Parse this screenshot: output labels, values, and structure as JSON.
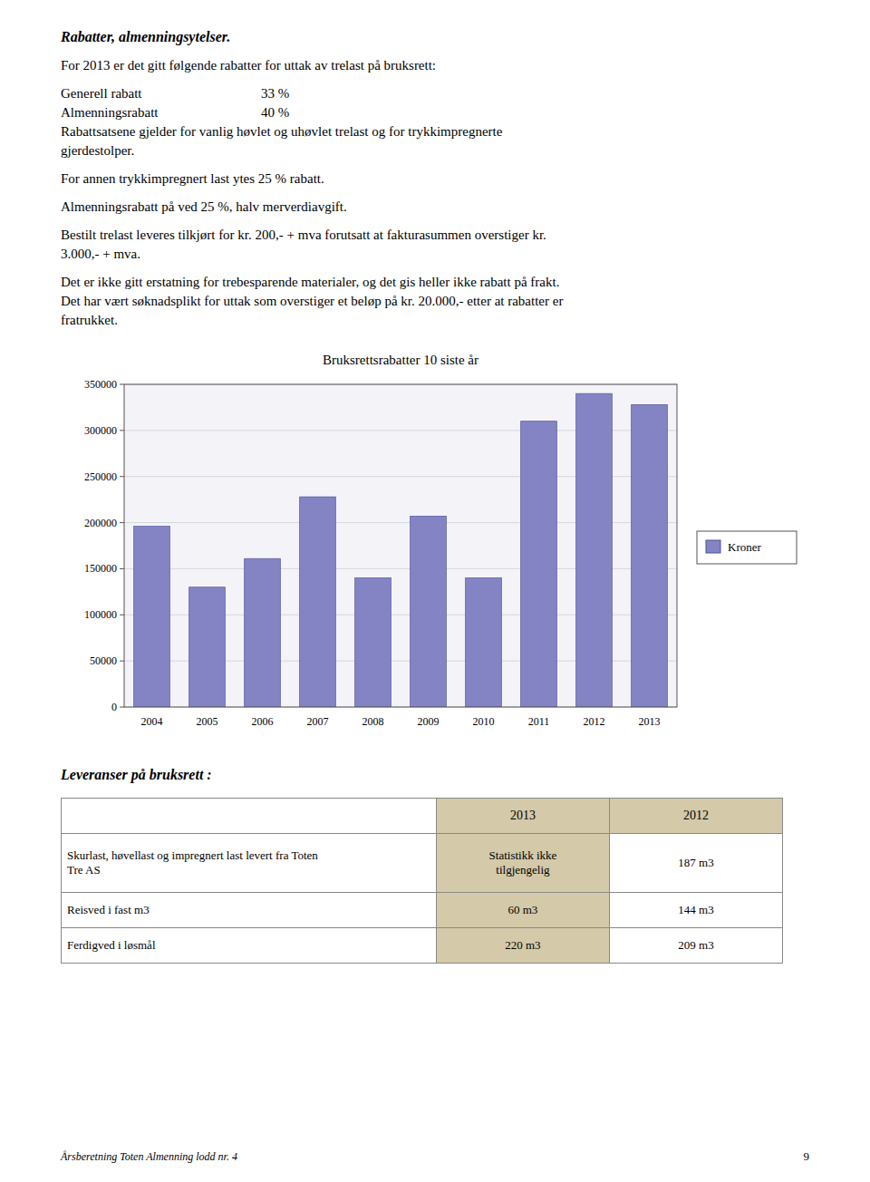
{
  "title": "Rabatter, almenningsytelser.",
  "para1": "For 2013 er det gitt følgende rabatter for uttak av trelast på bruksrett:",
  "para2_lines": [
    [
      "Generell rabatt",
      "33 %"
    ],
    [
      "Almenningsrabatt",
      "40 %"
    ],
    [
      "Rabattsatsene gjelder for vanlig høvlet og uhøvlet trelast og for trykkimpregnerte"
    ],
    [
      "gjerdestolper."
    ]
  ],
  "para3": "For annen trykkimpregnert last ytes 25 % rabatt.",
  "para4": "Almenningsrabatt på ved 25 %, halv merverdiavgift.",
  "para5_lines": [
    "Bestilt trelast leveres tilkjørt for kr. 200,- + mva forutsatt at fakturasummen overstiger kr.",
    "3.000,- + mva."
  ],
  "para6_lines": [
    "Det er ikke gitt erstatning for trebesparende materialer, og det gis heller ikke rabatt på frakt.",
    "Det har vært søknadsplikt for uttak som overstiger et beløp på kr. 20.000,- etter at rabatter er",
    "fratrukket."
  ],
  "chart_data": {
    "type": "bar",
    "title": "Bruksrettsrabatter 10 siste år",
    "categories": [
      "2004",
      "2005",
      "2006",
      "2007",
      "2008",
      "2009",
      "2010",
      "2011",
      "2012",
      "2013"
    ],
    "series": [
      {
        "name": "Kroner",
        "color": "#8484c4",
        "values": [
          196000,
          130000,
          161000,
          228000,
          140000,
          207000,
          140000,
          310000,
          340000,
          328000
        ]
      }
    ],
    "ylim": [
      0,
      350000
    ],
    "yticks": [
      0,
      50000,
      100000,
      150000,
      200000,
      250000,
      300000,
      350000
    ],
    "grid": true,
    "legend": "right"
  },
  "section_title": "Leveranser på bruksrett :",
  "table": {
    "color": "#d4c9a8",
    "header": [
      null,
      "2013",
      "2012"
    ],
    "rows": [
      [
        "Skurlast, høvellast og impregnert last levert fra Toten\nTre AS",
        "Statistikk ikke\ntilgjengelig",
        "187 m3"
      ],
      [
        "Reisved i fast m3",
        "60 m3",
        "144 m3"
      ],
      [
        "Ferdigved i løsmål",
        "220 m3",
        "209 m3"
      ]
    ]
  },
  "footer_left": "Årsberetning Toten Almenning lodd nr. 4",
  "footer_right": "9"
}
